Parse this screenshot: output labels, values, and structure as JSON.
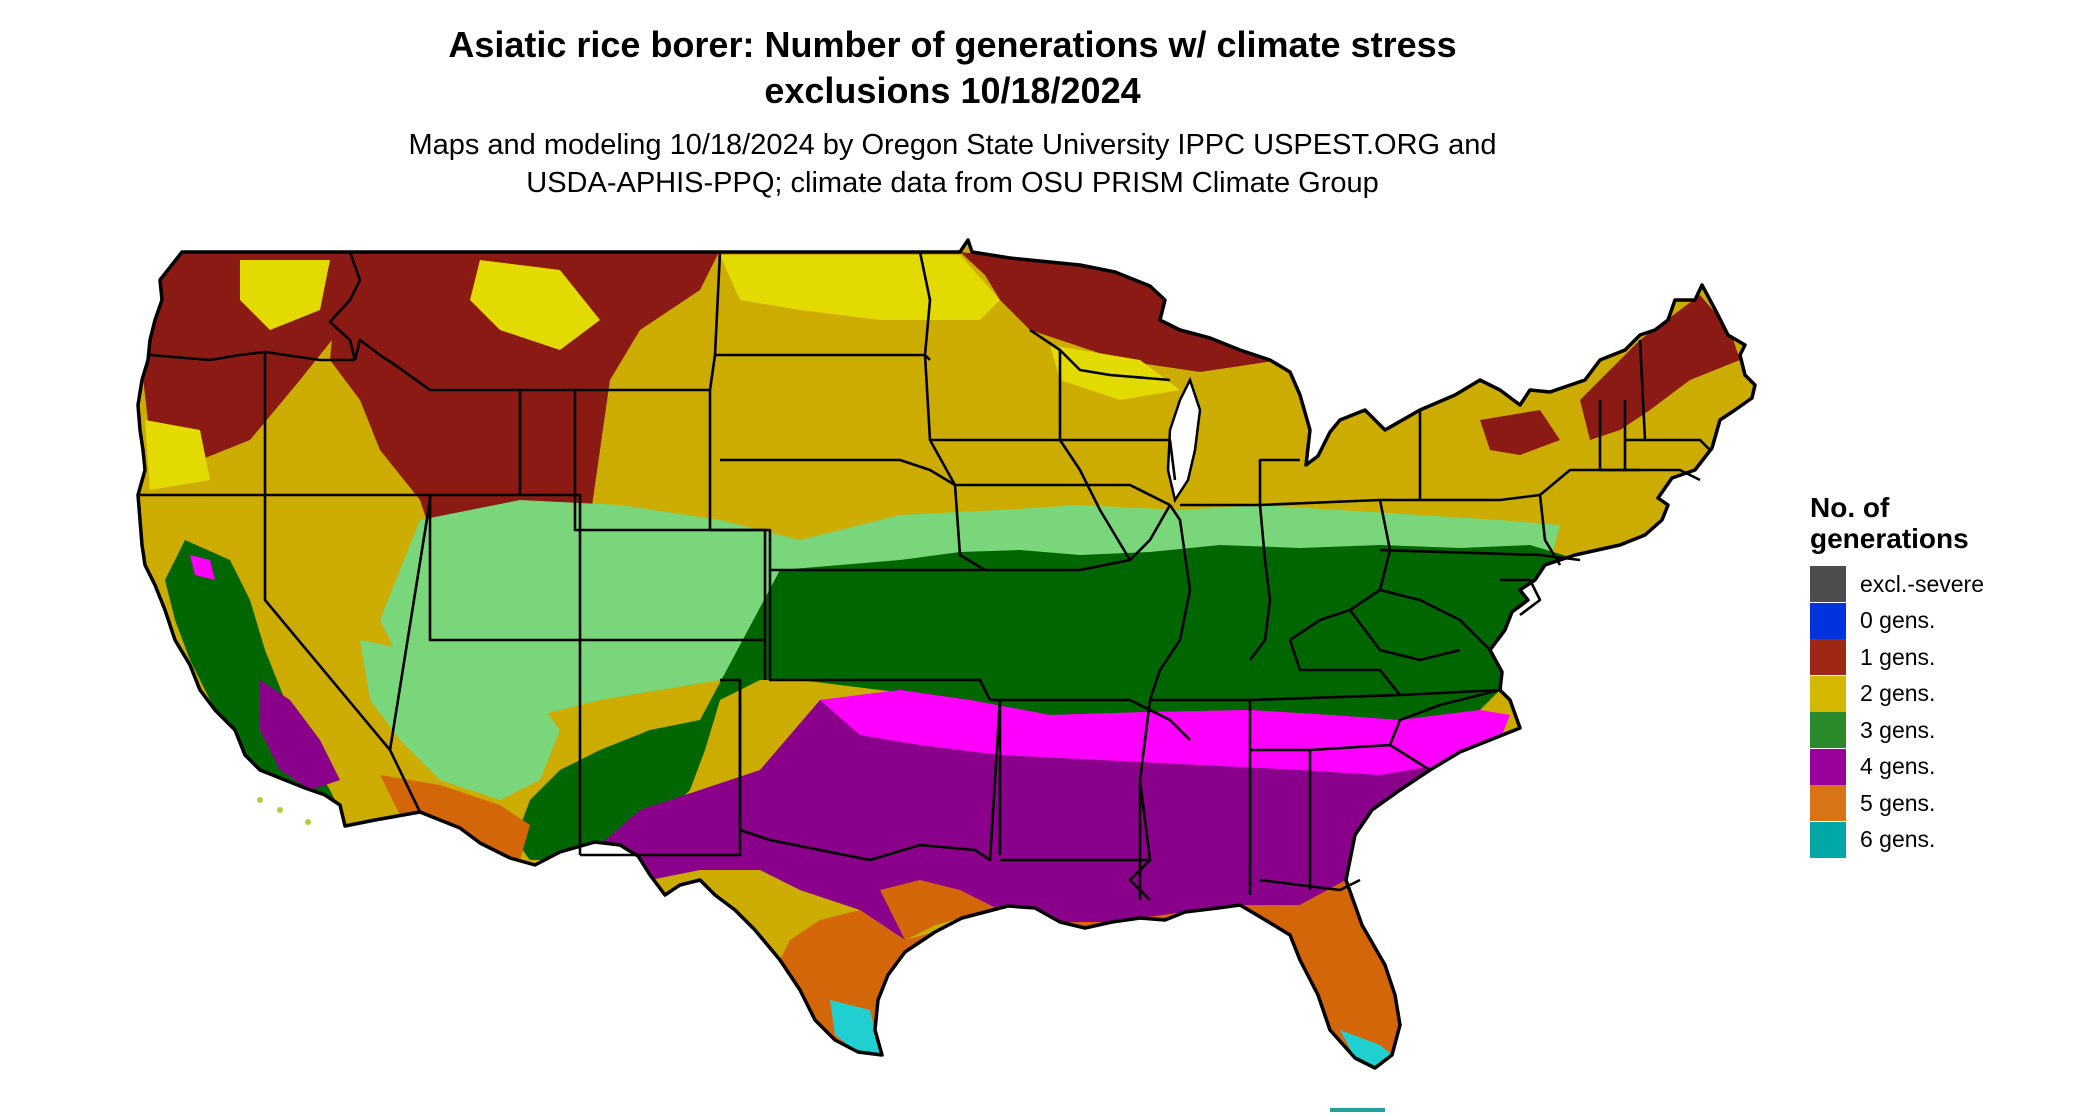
{
  "header": {
    "title_line1": "Asiatic rice borer: Number of generations w/ climate stress",
    "title_line2": "exclusions 10/18/2024",
    "subtitle_line1": "Maps and modeling 10/18/2024 by Oregon State University IPPC USPEST.ORG and",
    "subtitle_line2": "USDA-APHIS-PPQ; climate data from OSU PRISM Climate Group"
  },
  "legend": {
    "title_line1": "No. of",
    "title_line2": "generations",
    "items": [
      {
        "label": "excl.-severe",
        "color": "#4d4d4d"
      },
      {
        "label": "0 gens.",
        "color": "#0033dd"
      },
      {
        "label": "1 gens.",
        "color": "#9e2716"
      },
      {
        "label": "2 gens.",
        "color": "#d4b800"
      },
      {
        "label": "3 gens.",
        "color": "#2a8a2a"
      },
      {
        "label": "4 gens.",
        "color": "#9a009a"
      },
      {
        "label": "5 gens.",
        "color": "#d87416"
      },
      {
        "label": "6 gens.",
        "color": "#00a7a7"
      }
    ]
  },
  "map": {
    "region": "Contiguous United States",
    "colors": {
      "gens_1": "#8b1a14",
      "gens_2": "#ccac00",
      "gens_2_light": "#e2da00",
      "gens_3": "#006600",
      "gens_3_light": "#7ad67a",
      "gens_4": "#8a008a",
      "gens_4_light": "#ff00ff",
      "gens_5": "#d4660a",
      "gens_5_light": "#f09040",
      "gens_6": "#20d0d0",
      "border": "#000000"
    }
  }
}
